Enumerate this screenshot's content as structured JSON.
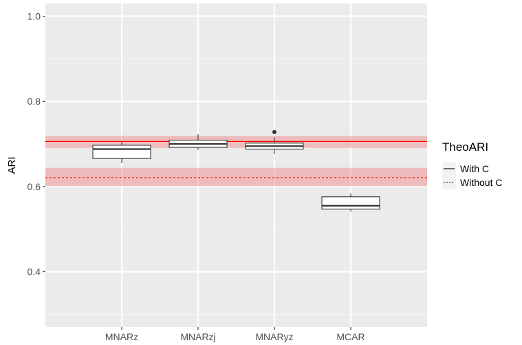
{
  "chart_data": {
    "type": "box",
    "ylabel": "ARI",
    "xlabel": "",
    "ylim": [
      0.27,
      1.03
    ],
    "yticks": [
      0.4,
      0.6,
      0.8,
      1.0
    ],
    "ytick_labels": [
      "0.4",
      "0.6",
      "0.8",
      "1.0"
    ],
    "categories": [
      "MNARz",
      "MNARzj",
      "MNARyz",
      "MCAR"
    ],
    "boxes": [
      {
        "category": "MNARz",
        "whisker_low": 0.655,
        "q1": 0.666,
        "median": 0.688,
        "q3": 0.697,
        "whisker_high": 0.707,
        "outliers": []
      },
      {
        "category": "MNARzj",
        "whisker_low": 0.686,
        "q1": 0.692,
        "median": 0.7,
        "q3": 0.709,
        "whisker_high": 0.723,
        "outliers": []
      },
      {
        "category": "MNARyz",
        "whisker_low": 0.676,
        "q1": 0.688,
        "median": 0.695,
        "q3": 0.702,
        "whisker_high": 0.716,
        "outliers": [
          0.728
        ]
      },
      {
        "category": "MCAR",
        "whisker_low": 0.541,
        "q1": 0.547,
        "median": 0.555,
        "q3": 0.576,
        "whisker_high": 0.584,
        "outliers": []
      }
    ],
    "reference_lines": [
      {
        "name": "With C",
        "value": 0.706,
        "band": [
          0.691,
          0.719
        ],
        "linetype": "solid"
      },
      {
        "name": "Without C",
        "value": 0.621,
        "band": [
          0.601,
          0.644
        ],
        "linetype": "dotted"
      }
    ],
    "legend": {
      "title": "TheoARI",
      "placement": "right",
      "entries": [
        "With C",
        "Without C"
      ]
    },
    "grid": true,
    "colors": {
      "panel": "#ebebeb",
      "grid_major": "#ffffff",
      "grid_minor": "#f5f5f5",
      "ref_line": "#ff0000",
      "ref_band": "#f08080",
      "box_fill": "#ffffff",
      "box_stroke": "#333333"
    }
  }
}
